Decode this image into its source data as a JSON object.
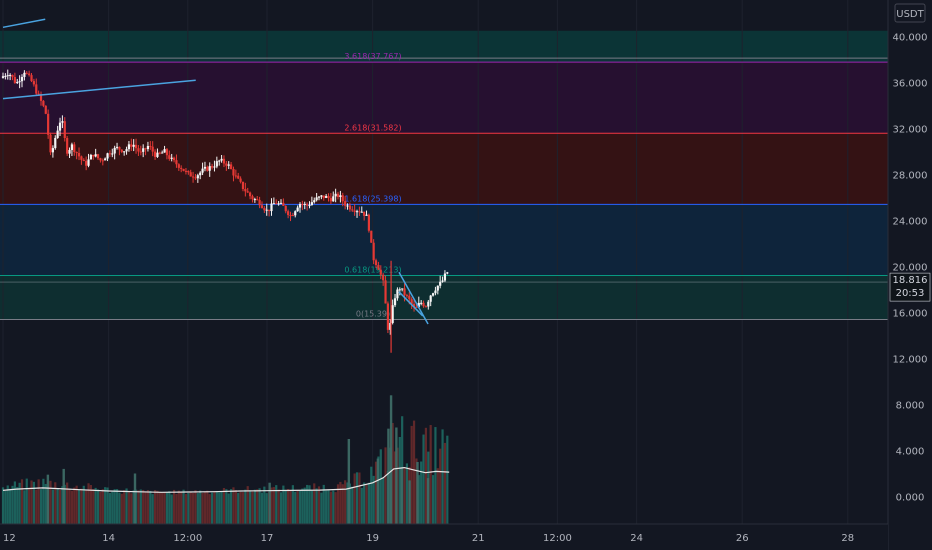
{
  "chart_data": {
    "type": "candlestick",
    "currency": "USDT",
    "last_price": "18.816",
    "countdown": "20:53",
    "y_ticks": [
      "40.000",
      "36.000",
      "32.000",
      "28.000",
      "24.000",
      "20.000",
      "16.000",
      "12.000",
      "8.000",
      "4.000",
      "0.000"
    ],
    "y_tick_values": [
      40,
      36,
      32,
      28,
      24,
      20,
      16,
      12,
      8,
      4,
      0
    ],
    "x_ticks": [
      {
        "label": "12",
        "t": 0
      },
      {
        "label": "14",
        "t": 2
      },
      {
        "label": "12:00",
        "t": 3.5
      },
      {
        "label": "17",
        "t": 5
      },
      {
        "label": "19",
        "t": 7
      },
      {
        "label": "21",
        "t": 9
      },
      {
        "label": "12:00",
        "t": 10.5
      },
      {
        "label": "24",
        "t": 12
      },
      {
        "label": "26",
        "t": 14
      },
      {
        "label": "28",
        "t": 16
      }
    ],
    "fib_levels": [
      {
        "label": "3.618(37.767)",
        "value": 37.767,
        "color": "#9c27b0"
      },
      {
        "label": "2.618(31.582)",
        "value": 31.582,
        "color": "#f23645"
      },
      {
        "label": "1.618(25.398)",
        "value": 25.398,
        "color": "#2962ff"
      },
      {
        "label": "0.618(19.213)",
        "value": 19.213,
        "color": "#089981"
      },
      {
        "label": "0(15.39)",
        "value": 15.39,
        "color": "#787b86"
      }
    ],
    "fib_bands": [
      {
        "from": 37.767,
        "to": 40.5,
        "color": "#0b3a3a"
      },
      {
        "from": 31.582,
        "to": 37.767,
        "color": "#2a0f33"
      },
      {
        "from": 25.398,
        "to": 31.582,
        "color": "#3b1212"
      },
      {
        "from": 19.213,
        "to": 25.398,
        "color": "#0e2740"
      },
      {
        "from": 15.39,
        "to": 19.213,
        "color": "#0e3333"
      }
    ],
    "price_path": [
      [
        0.0,
        36.4
      ],
      [
        0.15,
        36.9
      ],
      [
        0.3,
        35.9
      ],
      [
        0.45,
        37.0
      ],
      [
        0.6,
        36.0
      ],
      [
        0.75,
        34.5
      ],
      [
        0.85,
        33.5
      ],
      [
        0.95,
        29.5
      ],
      [
        1.05,
        31.5
      ],
      [
        1.15,
        33.0
      ],
      [
        1.25,
        30.0
      ],
      [
        1.35,
        30.5
      ],
      [
        1.5,
        29.5
      ],
      [
        1.6,
        28.8
      ],
      [
        1.75,
        29.8
      ],
      [
        1.9,
        29.2
      ],
      [
        2.05,
        29.9
      ],
      [
        2.2,
        30.3
      ],
      [
        2.35,
        30.1
      ],
      [
        2.5,
        30.7
      ],
      [
        2.65,
        29.8
      ],
      [
        2.8,
        30.5
      ],
      [
        2.95,
        29.6
      ],
      [
        3.1,
        30.0
      ],
      [
        3.25,
        29.2
      ],
      [
        3.4,
        28.7
      ],
      [
        3.55,
        28.0
      ],
      [
        3.7,
        27.9
      ],
      [
        3.85,
        28.4
      ],
      [
        4.0,
        28.7
      ],
      [
        4.15,
        29.2
      ],
      [
        4.3,
        28.9
      ],
      [
        4.45,
        27.8
      ],
      [
        4.6,
        26.8
      ],
      [
        4.75,
        26.0
      ],
      [
        4.9,
        25.6
      ],
      [
        5.05,
        24.8
      ],
      [
        5.2,
        25.6
      ],
      [
        5.35,
        25.2
      ],
      [
        5.5,
        24.4
      ],
      [
        5.65,
        25.5
      ],
      [
        5.8,
        25.3
      ],
      [
        5.95,
        25.8
      ],
      [
        6.1,
        26.1
      ],
      [
        6.25,
        25.9
      ],
      [
        6.4,
        26.2
      ],
      [
        6.55,
        25.3
      ],
      [
        6.7,
        25.0
      ],
      [
        6.85,
        24.8
      ],
      [
        6.95,
        24.2
      ],
      [
        7.05,
        20.8
      ],
      [
        7.15,
        20.0
      ],
      [
        7.25,
        18.5
      ],
      [
        7.35,
        14.0
      ],
      [
        7.45,
        17.2
      ],
      [
        7.55,
        18.2
      ],
      [
        7.65,
        17.6
      ],
      [
        7.75,
        17.0
      ],
      [
        7.85,
        16.2
      ],
      [
        7.95,
        16.9
      ],
      [
        8.05,
        16.6
      ],
      [
        8.15,
        17.6
      ],
      [
        8.25,
        18.2
      ],
      [
        8.35,
        18.6
      ],
      [
        8.45,
        19.5
      ]
    ],
    "volume_path": [
      [
        0.0,
        0.6
      ],
      [
        0.25,
        0.8
      ],
      [
        0.5,
        0.9
      ],
      [
        0.75,
        1.0
      ],
      [
        1.0,
        0.9
      ],
      [
        1.5,
        0.7
      ],
      [
        2.0,
        0.5
      ],
      [
        2.5,
        0.4
      ],
      [
        3.0,
        0.3
      ],
      [
        3.5,
        0.35
      ],
      [
        4.0,
        0.4
      ],
      [
        4.5,
        0.5
      ],
      [
        5.0,
        0.55
      ],
      [
        5.5,
        0.6
      ],
      [
        6.0,
        0.65
      ],
      [
        6.5,
        0.8
      ],
      [
        7.0,
        1.8
      ],
      [
        7.2,
        2.6
      ],
      [
        7.4,
        4.0
      ],
      [
        7.6,
        4.2
      ],
      [
        7.8,
        3.8
      ],
      [
        8.0,
        3.4
      ],
      [
        8.2,
        3.6
      ],
      [
        8.45,
        3.5
      ]
    ],
    "volume_spikes": [
      [
        0.85,
        1.9
      ],
      [
        1.15,
        2.4
      ],
      [
        2.5,
        2.0
      ],
      [
        5.05,
        1.2
      ],
      [
        6.55,
        5.0
      ],
      [
        7.1,
        3.3
      ],
      [
        7.3,
        5.9
      ],
      [
        7.35,
        8.8
      ],
      [
        7.45,
        6.0
      ],
      [
        7.55,
        2.5
      ],
      [
        7.7,
        1.4
      ],
      [
        7.85,
        3.0
      ],
      [
        8.05,
        1.6
      ]
    ],
    "trend_lines": [
      {
        "x1": 0.0,
        "y1": 40.8,
        "x2": 0.8,
        "y2": 41.5,
        "color": "#4aa3e0"
      },
      {
        "x1": 0.0,
        "y1": 34.6,
        "x2": 3.65,
        "y2": 36.2,
        "color": "#4aa3e0"
      },
      {
        "x1": 7.5,
        "y1": 19.5,
        "x2": 8.05,
        "y2": 15.0,
        "color": "#4aa3e0"
      },
      {
        "x1": 7.5,
        "y1": 17.8,
        "x2": 7.95,
        "y2": 15.7,
        "color": "#4aa3e0"
      }
    ]
  }
}
